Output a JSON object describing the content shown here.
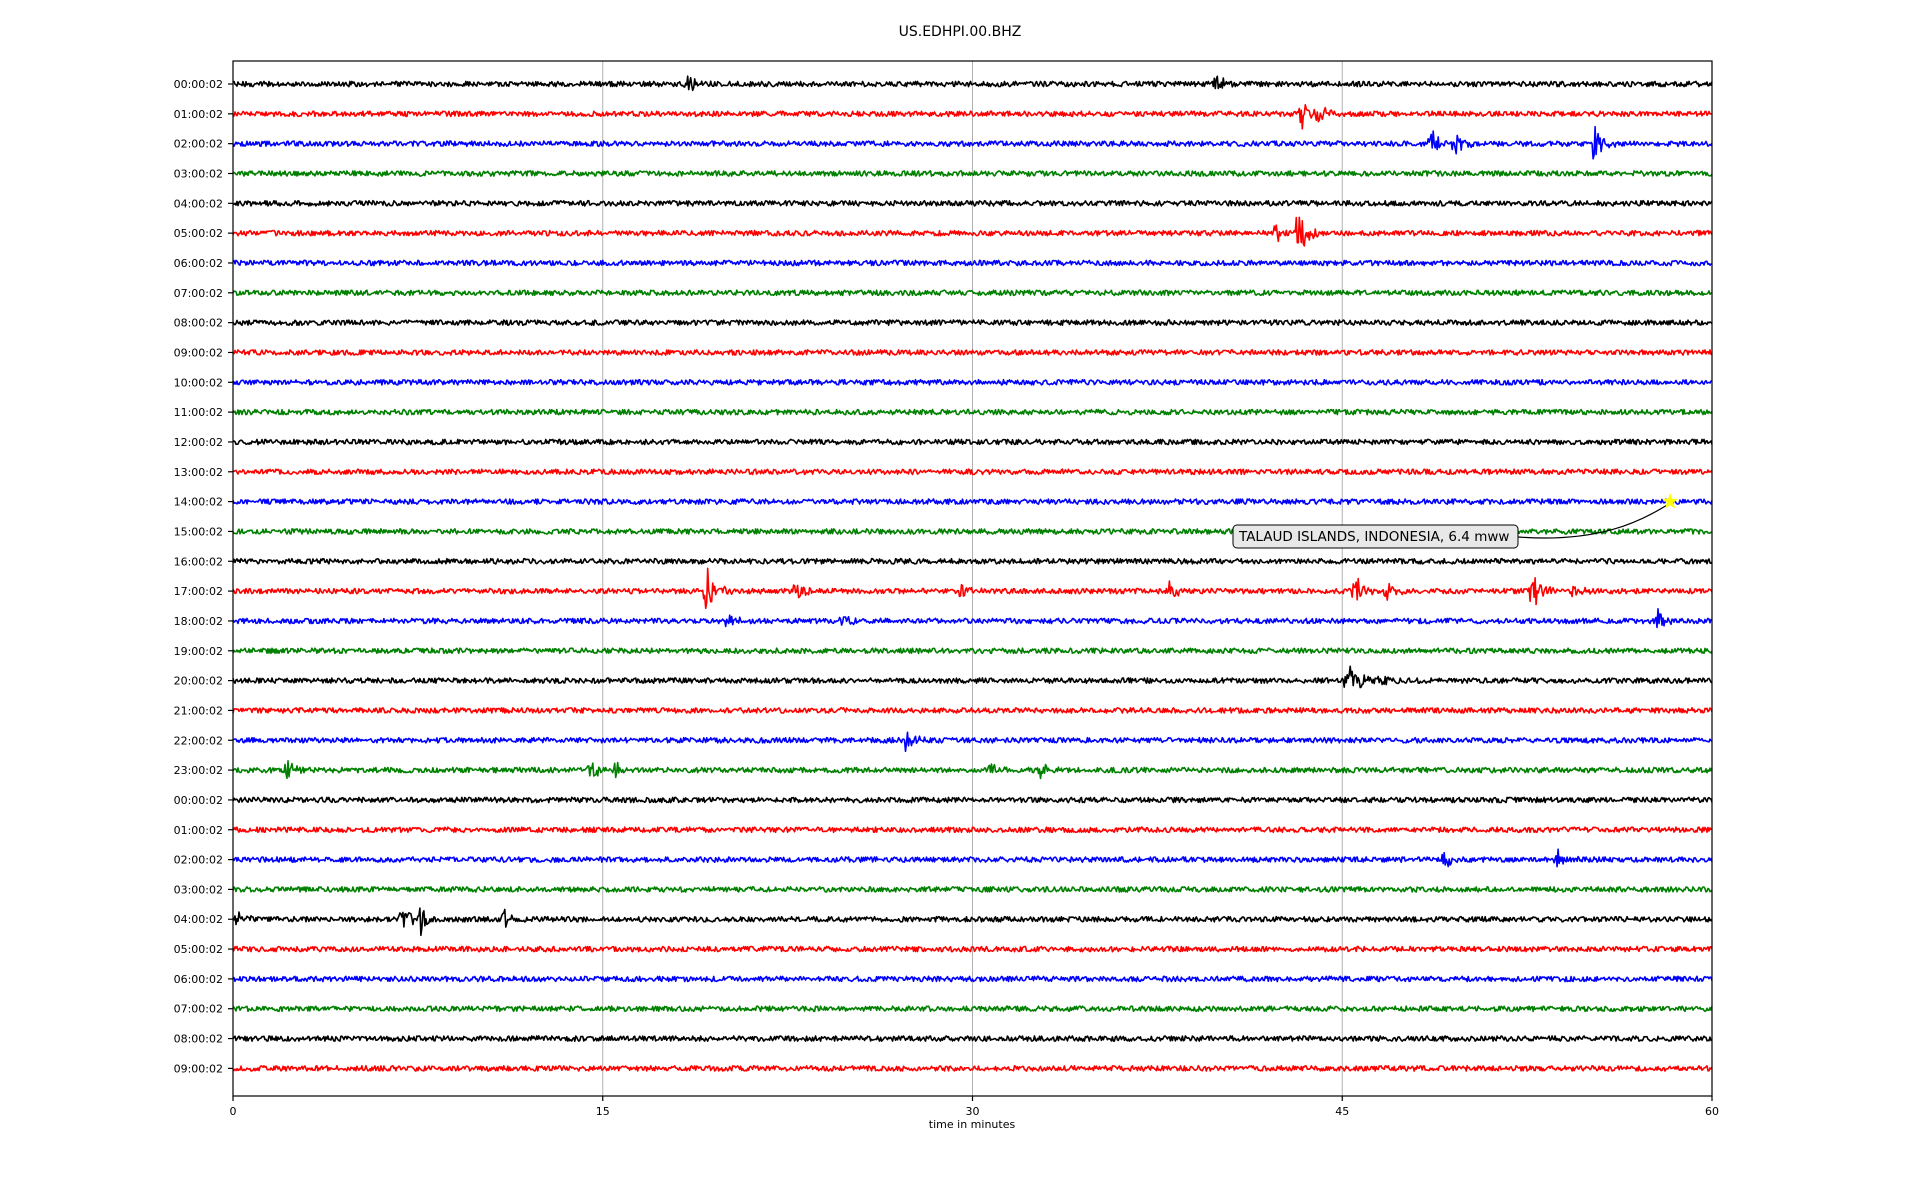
{
  "chart_data": {
    "type": "line",
    "title": "US.EDHPI.00.BHZ",
    "xlabel": "time in minutes",
    "ylabel": "",
    "xlim": [
      0,
      60
    ],
    "x_ticks": [
      "0",
      "15",
      "30",
      "45",
      "60"
    ],
    "x_tick_values": [
      0,
      15,
      30,
      45,
      60
    ],
    "grid": "vertical",
    "line_colors": [
      "#000000",
      "#ff0000",
      "#0000ff",
      "#008000"
    ],
    "rows": [
      {
        "label": "00:00:02",
        "color": "#000000",
        "events": [
          {
            "t": 18.4,
            "amp": 0.5
          },
          {
            "t": 39.9,
            "amp": 0.45
          }
        ]
      },
      {
        "label": "01:00:02",
        "color": "#ff0000",
        "events": [
          {
            "t": 43.3,
            "amp": 1.0
          },
          {
            "t": 44.0,
            "amp": 0.5
          }
        ]
      },
      {
        "label": "02:00:02",
        "color": "#0000ff",
        "events": [
          {
            "t": 48.6,
            "amp": 0.8
          },
          {
            "t": 49.5,
            "amp": 0.6
          },
          {
            "t": 55.2,
            "amp": 0.9
          }
        ]
      },
      {
        "label": "03:00:02",
        "color": "#008000",
        "events": []
      },
      {
        "label": "04:00:02",
        "color": "#000000",
        "events": []
      },
      {
        "label": "05:00:02",
        "color": "#ff0000",
        "events": [
          {
            "t": 43.2,
            "amp": 1.6
          },
          {
            "t": 42.3,
            "amp": 0.4
          }
        ]
      },
      {
        "label": "06:00:02",
        "color": "#0000ff",
        "events": []
      },
      {
        "label": "07:00:02",
        "color": "#008000",
        "events": []
      },
      {
        "label": "08:00:02",
        "color": "#000000",
        "events": []
      },
      {
        "label": "09:00:02",
        "color": "#ff0000",
        "events": []
      },
      {
        "label": "10:00:02",
        "color": "#0000ff",
        "events": []
      },
      {
        "label": "11:00:02",
        "color": "#008000",
        "events": []
      },
      {
        "label": "12:00:02",
        "color": "#000000",
        "events": []
      },
      {
        "label": "13:00:02",
        "color": "#ff0000",
        "events": []
      },
      {
        "label": "14:00:02",
        "color": "#0000ff",
        "events": []
      },
      {
        "label": "15:00:02",
        "color": "#008000",
        "events": []
      },
      {
        "label": "16:00:02",
        "color": "#000000",
        "events": []
      },
      {
        "label": "17:00:02",
        "color": "#ff0000",
        "events": [
          {
            "t": 19.2,
            "amp": 1.2
          },
          {
            "t": 22.8,
            "amp": 0.5
          },
          {
            "t": 29.5,
            "amp": 0.4
          },
          {
            "t": 38.0,
            "amp": 0.4
          },
          {
            "t": 45.5,
            "amp": 0.9
          },
          {
            "t": 46.8,
            "amp": 0.6
          },
          {
            "t": 52.7,
            "amp": 0.9
          },
          {
            "t": 54.3,
            "amp": 0.4
          }
        ]
      },
      {
        "label": "18:00:02",
        "color": "#0000ff",
        "events": [
          {
            "t": 20.0,
            "amp": 0.35
          },
          {
            "t": 24.7,
            "amp": 0.4
          },
          {
            "t": 57.8,
            "amp": 0.6
          }
        ]
      },
      {
        "label": "19:00:02",
        "color": "#008000",
        "events": []
      },
      {
        "label": "20:00:02",
        "color": "#000000",
        "events": [
          {
            "t": 45.2,
            "amp": 1.6
          },
          {
            "t": 46.5,
            "amp": 0.5
          }
        ]
      },
      {
        "label": "21:00:02",
        "color": "#ff0000",
        "events": []
      },
      {
        "label": "22:00:02",
        "color": "#0000ff",
        "events": [
          {
            "t": 27.3,
            "amp": 0.6
          }
        ]
      },
      {
        "label": "23:00:02",
        "color": "#008000",
        "events": [
          {
            "t": 2.2,
            "amp": 0.6
          },
          {
            "t": 14.5,
            "amp": 0.6
          },
          {
            "t": 15.5,
            "amp": 0.5
          },
          {
            "t": 30.7,
            "amp": 0.4
          },
          {
            "t": 32.7,
            "amp": 0.4
          }
        ]
      },
      {
        "label": "00:00:02",
        "color": "#000000",
        "events": []
      },
      {
        "label": "01:00:02",
        "color": "#ff0000",
        "events": []
      },
      {
        "label": "02:00:02",
        "color": "#0000ff",
        "events": [
          {
            "t": 49.1,
            "amp": 0.4
          },
          {
            "t": 53.7,
            "amp": 0.5
          }
        ]
      },
      {
        "label": "03:00:02",
        "color": "#008000",
        "events": []
      },
      {
        "label": "04:00:02",
        "color": "#000000",
        "events": [
          {
            "t": 0.2,
            "amp": 0.4
          },
          {
            "t": 6.8,
            "amp": 0.7
          },
          {
            "t": 7.6,
            "amp": 0.7
          },
          {
            "t": 11.0,
            "amp": 0.4
          }
        ]
      },
      {
        "label": "05:00:02",
        "color": "#ff0000",
        "events": []
      },
      {
        "label": "06:00:02",
        "color": "#0000ff",
        "events": []
      },
      {
        "label": "07:00:02",
        "color": "#008000",
        "events": []
      },
      {
        "label": "08:00:02",
        "color": "#000000",
        "events": []
      },
      {
        "label": "09:00:02",
        "color": "#ff0000",
        "events": []
      }
    ],
    "annotation": {
      "text": "TALAUD ISLANDS, INDONESIA, 6.4 mww",
      "row_index": 14,
      "t": 58.3,
      "marker": "star",
      "marker_color": "#ffff00"
    }
  }
}
